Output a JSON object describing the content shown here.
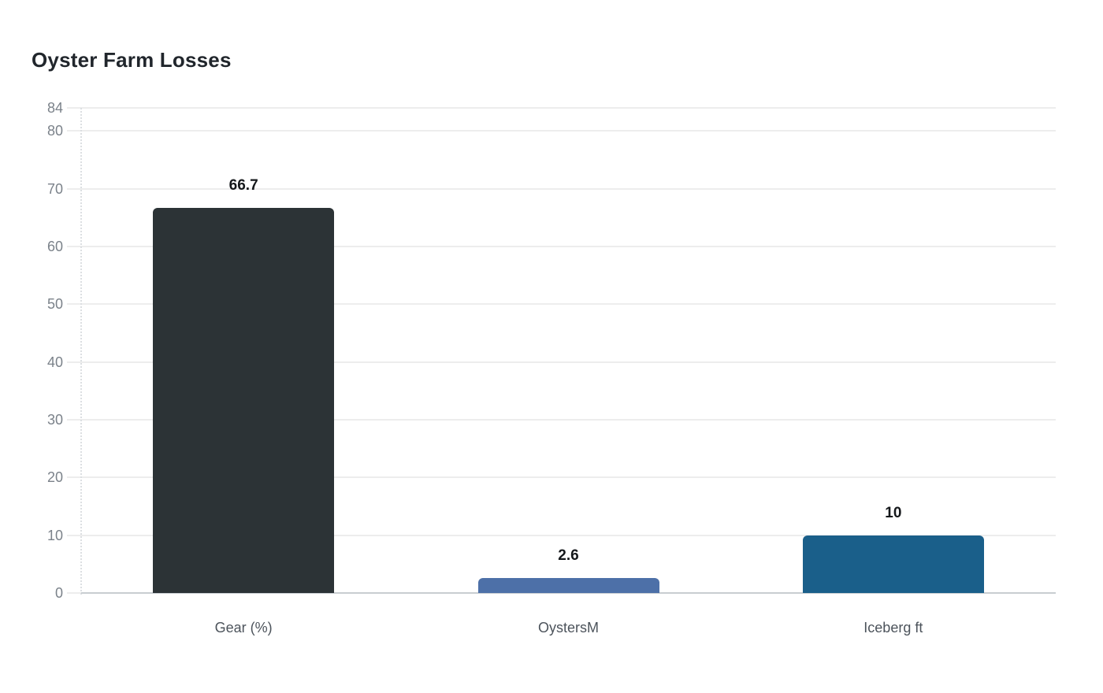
{
  "chart_data": {
    "type": "bar",
    "title": "Oyster Farm Losses",
    "categories": [
      "Gear (%)",
      "OystersM",
      "Iceberg ft"
    ],
    "values": [
      66.7,
      2.6,
      10
    ],
    "value_labels": [
      "66.7",
      "2.6",
      "10"
    ],
    "bar_colors": [
      "#2c3336",
      "#4d70a8",
      "#1a5f8a"
    ],
    "yticks": [
      0,
      10,
      20,
      30,
      40,
      50,
      60,
      70,
      80,
      84
    ],
    "ytick_labels": [
      "0",
      "10",
      "20",
      "30",
      "40",
      "50",
      "60",
      "70",
      "80",
      "84"
    ],
    "ylim": [
      0,
      84
    ],
    "xlabel": "",
    "ylabel": "",
    "grid": true,
    "legend": "none",
    "background": "#ffffff",
    "value_label_color": "#15181b",
    "tick_label_color": "#7b828a",
    "category_label_color": "#4c535b",
    "gridline_color": "#ededed",
    "zero_line_color": "#c8cdd1",
    "title_color": "#21262c"
  }
}
